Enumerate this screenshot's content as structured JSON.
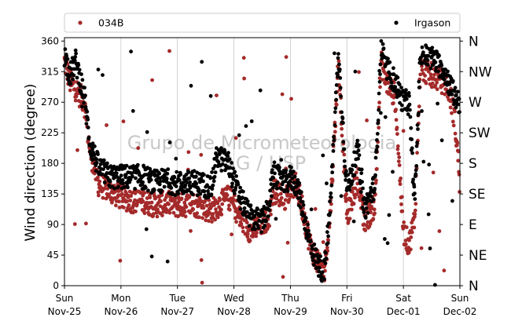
{
  "chart_data": {
    "type": "scatter",
    "ylabel": "Wind direction (degree)",
    "ylim": [
      0,
      365
    ],
    "yticks": [
      0,
      45,
      90,
      135,
      180,
      225,
      270,
      315,
      360
    ],
    "compass_labels": [
      "N",
      "NE",
      "E",
      "SE",
      "S",
      "SW",
      "W",
      "NW",
      "N"
    ],
    "xlim": [
      0,
      7
    ],
    "xtick_labels": [
      {
        "day": "Sun",
        "date": "Nov-25"
      },
      {
        "day": "Mon",
        "date": "Nov-26"
      },
      {
        "day": "Tue",
        "date": "Nov-27"
      },
      {
        "day": "Wed",
        "date": "Nov-28"
      },
      {
        "day": "Thu",
        "date": "Nov-29"
      },
      {
        "day": "Fri",
        "date": "Nov-30"
      },
      {
        "day": "Sat",
        "date": "Dec-01"
      },
      {
        "day": "Sun",
        "date": "Dec-02"
      }
    ],
    "grid": "x-major",
    "legend_placement": "top",
    "watermark": [
      "Grupo de Micrometeorologia",
      "IAG / USP"
    ],
    "series": [
      {
        "name": "034B",
        "color": "#a52a2a",
        "profile": [
          [
            0.0,
            330
          ],
          [
            0.1,
            300
          ],
          [
            0.2,
            290
          ],
          [
            0.35,
            270
          ],
          [
            0.45,
            200
          ],
          [
            0.6,
            150
          ],
          [
            0.8,
            140
          ],
          [
            1.0,
            130
          ],
          [
            1.2,
            125
          ],
          [
            1.4,
            125
          ],
          [
            1.6,
            118
          ],
          [
            1.8,
            122
          ],
          [
            2.0,
            118
          ],
          [
            2.3,
            120
          ],
          [
            2.6,
            110
          ],
          [
            2.9,
            130
          ],
          [
            3.0,
            120
          ],
          [
            3.1,
            100
          ],
          [
            3.3,
            80
          ],
          [
            3.5,
            90
          ],
          [
            3.6,
            100
          ],
          [
            3.7,
            140
          ],
          [
            3.9,
            130
          ],
          [
            4.0,
            140
          ],
          [
            4.1,
            150
          ],
          [
            4.2,
            120
          ],
          [
            4.35,
            60
          ],
          [
            4.5,
            30
          ],
          [
            4.6,
            20
          ],
          [
            4.7,
            100
          ],
          [
            4.85,
            330
          ],
          [
            5.0,
            100
          ],
          [
            5.2,
            160
          ],
          [
            5.3,
            90
          ],
          [
            5.5,
            120
          ],
          [
            5.6,
            330
          ],
          [
            5.7,
            300
          ],
          [
            5.85,
            280
          ],
          [
            6.0,
            80
          ],
          [
            6.1,
            60
          ],
          [
            6.2,
            100
          ],
          [
            6.3,
            320
          ],
          [
            6.5,
            310
          ],
          [
            6.7,
            300
          ],
          [
            6.8,
            290
          ],
          [
            6.9,
            250
          ],
          [
            7.0,
            160
          ]
        ]
      },
      {
        "name": "Irgason",
        "color": "#000000",
        "profile": [
          [
            0.0,
            340
          ],
          [
            0.1,
            310
          ],
          [
            0.2,
            330
          ],
          [
            0.35,
            280
          ],
          [
            0.45,
            210
          ],
          [
            0.6,
            175
          ],
          [
            0.8,
            160
          ],
          [
            1.0,
            160
          ],
          [
            1.2,
            160
          ],
          [
            1.4,
            160
          ],
          [
            1.6,
            152
          ],
          [
            1.8,
            155
          ],
          [
            2.0,
            150
          ],
          [
            2.3,
            152
          ],
          [
            2.6,
            145
          ],
          [
            2.7,
            190
          ],
          [
            2.9,
            180
          ],
          [
            3.0,
            155
          ],
          [
            3.1,
            130
          ],
          [
            3.3,
            100
          ],
          [
            3.5,
            95
          ],
          [
            3.6,
            110
          ],
          [
            3.7,
            165
          ],
          [
            3.9,
            150
          ],
          [
            4.0,
            160
          ],
          [
            4.1,
            150
          ],
          [
            4.2,
            120
          ],
          [
            4.35,
            60
          ],
          [
            4.5,
            30
          ],
          [
            4.6,
            20
          ],
          [
            4.7,
            110
          ],
          [
            4.85,
            340
          ],
          [
            5.0,
            140
          ],
          [
            5.2,
            200
          ],
          [
            5.3,
            110
          ],
          [
            5.5,
            150
          ],
          [
            5.6,
            350
          ],
          [
            5.7,
            320
          ],
          [
            5.85,
            300
          ],
          [
            6.0,
            270
          ],
          [
            6.1,
            270
          ],
          [
            6.2,
            120
          ],
          [
            6.3,
            340
          ],
          [
            6.5,
            335
          ],
          [
            6.7,
            320
          ],
          [
            6.8,
            300
          ],
          [
            6.9,
            280
          ],
          [
            7.0,
            270
          ]
        ]
      }
    ]
  }
}
